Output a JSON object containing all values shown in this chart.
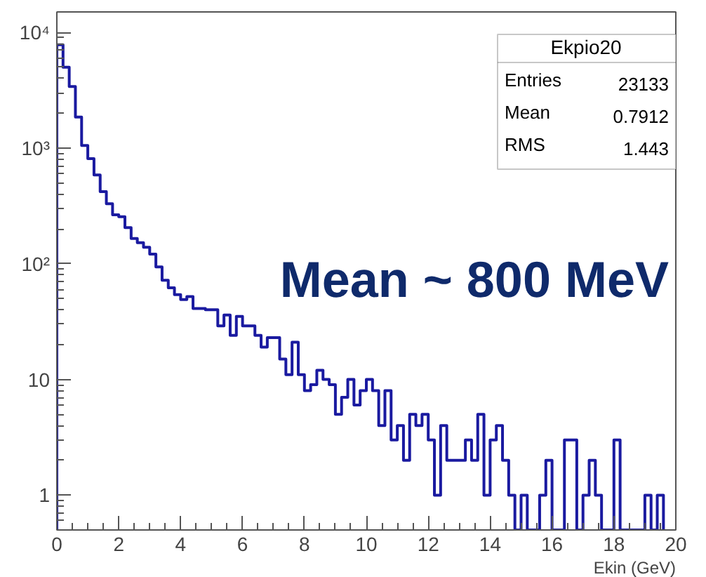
{
  "chart_data": {
    "type": "histogram",
    "xlabel": "Ekin (GeV)",
    "bins": [
      0,
      0.2,
      0.4,
      0.6,
      0.8,
      1,
      1.2,
      1.4,
      1.6,
      1.8,
      2,
      2.2,
      2.4,
      2.6,
      2.8,
      3,
      3.2,
      3.4,
      3.6,
      3.8,
      4,
      4.2,
      4.4,
      4.6,
      4.8,
      5,
      5.2,
      5.4,
      5.6,
      5.8,
      6,
      6.2,
      6.4,
      6.6,
      6.8,
      7,
      7.2,
      7.4,
      7.6,
      7.8,
      8,
      8.2,
      8.4,
      8.6,
      8.8,
      9,
      9.2,
      9.4,
      9.6,
      9.8,
      10,
      10.2,
      10.4,
      10.6,
      10.8,
      11,
      11.2,
      11.4,
      11.6,
      11.8,
      12,
      12.2,
      12.4,
      12.6,
      12.8,
      13,
      13.2,
      13.4,
      13.6,
      13.8,
      14,
      14.2,
      14.4,
      14.6,
      14.8,
      15,
      15.2,
      15.4,
      15.6,
      15.8,
      16,
      16.2,
      16.4,
      16.6,
      16.8,
      17,
      17.2,
      17.4,
      17.6,
      17.8,
      18,
      18.2,
      18.4,
      18.6,
      18.8,
      19,
      19.2,
      19.4,
      19.6
    ],
    "values": [
      7800,
      5000,
      3400,
      1850,
      1050,
      810,
      585,
      420,
      330,
      265,
      255,
      205,
      165,
      152,
      139,
      121,
      94,
      72,
      62,
      54,
      49,
      52,
      41,
      41,
      40,
      40,
      29,
      36,
      24,
      35,
      29,
      29,
      24,
      19,
      23,
      23,
      15,
      11,
      21,
      11,
      8,
      9,
      12,
      10,
      9,
      5,
      7,
      10,
      6,
      8,
      10,
      8,
      4,
      8,
      3,
      4,
      2,
      5,
      4,
      5,
      3,
      1,
      4,
      2,
      2,
      2,
      3,
      2,
      5,
      1,
      3,
      4,
      2,
      1,
      null,
      1,
      null,
      null,
      1,
      2,
      null,
      null,
      3,
      3,
      null,
      1,
      2,
      1,
      null,
      null,
      3,
      null,
      null,
      null,
      null,
      1,
      null,
      1
    ],
    "color": "#1a1aa0",
    "xlim": [
      0,
      20
    ],
    "xticks": [
      0,
      2,
      4,
      6,
      8,
      10,
      12,
      14,
      16,
      18,
      20
    ],
    "log": true,
    "ylim": [
      0.5,
      15000
    ],
    "yticks": [
      {
        "value": 1,
        "label": "1"
      },
      {
        "value": 10,
        "label": "10"
      },
      {
        "value": 100,
        "label": "10²"
      },
      {
        "value": 1000,
        "label": "10³"
      },
      {
        "value": 10000,
        "label": "10⁴"
      }
    ],
    "grid": false,
    "annotations": [
      "Ekpio20",
      "Entries",
      "23133",
      "Mean",
      "0.7912",
      "RMS",
      "1.443",
      "Mean ~ 800 MeV"
    ]
  }
}
